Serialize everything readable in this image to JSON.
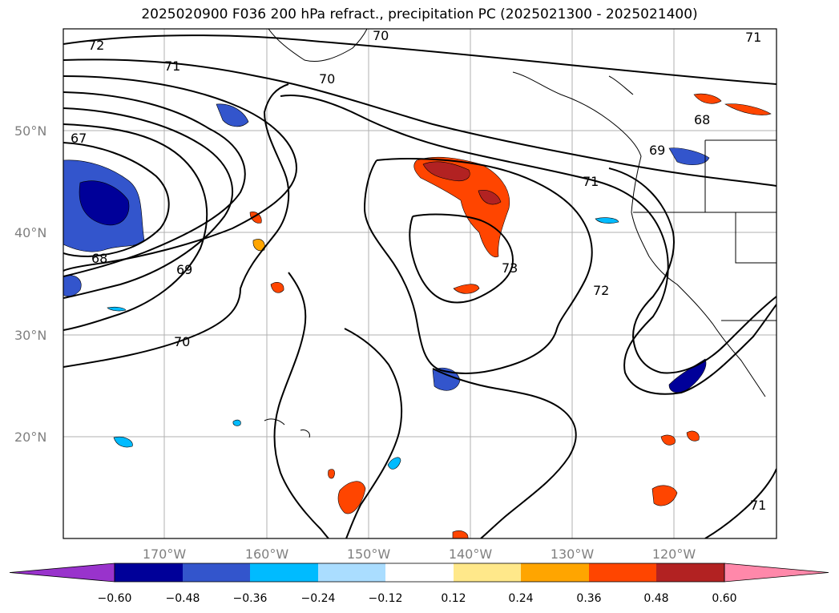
{
  "title": "2025020900 F036 200 hPa refract., precipitation PC (2025021300 - 2025021400)",
  "lat_ticks": [
    "50°N",
    "40°N",
    "30°N",
    "20°N"
  ],
  "lon_ticks": [
    "170°W",
    "160°W",
    "150°W",
    "140°W",
    "130°W",
    "120°W"
  ],
  "contour_labels": [
    "72",
    "70",
    "71",
    "70",
    "71",
    "67",
    "68",
    "69",
    "71",
    "68",
    "69",
    "73",
    "72",
    "70",
    "71"
  ],
  "colorbar": {
    "ticks": [
      "−0.60",
      "−0.48",
      "−0.36",
      "−0.24",
      "−0.12",
      "0.12",
      "0.24",
      "0.36",
      "0.48",
      "0.60"
    ],
    "colors": [
      "#9933cc",
      "#000099",
      "#3355cc",
      "#00bbff",
      "#aaddff",
      "#ffffff",
      "#ffe88a",
      "#ffa500",
      "#ff4500",
      "#b22222",
      "#ff88aa"
    ]
  }
}
